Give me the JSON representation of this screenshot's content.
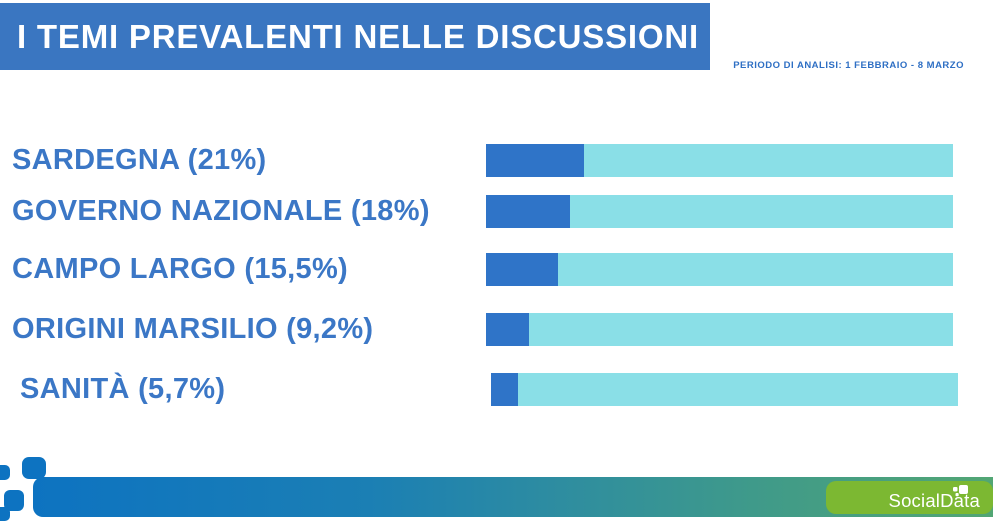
{
  "header": {
    "title": "I TEMI PREVALENTI NELLE DISCUSSIONI"
  },
  "period_note": "PERIODO DI ANALISI: 1 FEBBRAIO - 8 MARZO",
  "footer": {
    "brand": "SocialData"
  },
  "colors": {
    "header_bg": "#3a76c1",
    "label_text": "#3b77c6",
    "bar_fill": "#2f74c8",
    "bar_track": "#8adfe7",
    "footer_gradient_start": "#0d73c1",
    "footer_gradient_end": "#52a674",
    "brand_badge_bg": "#7cb832"
  },
  "chart_data": {
    "type": "bar",
    "orientation": "horizontal",
    "title": "I TEMI PREVALENTI NELLE DISCUSSIONI",
    "categories": [
      "SARDEGNA",
      "GOVERNO NAZIONALE",
      "CAMPO LARGO",
      "ORIGINI MARSILIO",
      "SANITÀ"
    ],
    "values": [
      21,
      18,
      15.5,
      9.2,
      5.7
    ],
    "labels": [
      "SARDEGNA (21%)",
      "GOVERNO NAZIONALE (18%)",
      "CAMPO LARGO (15,5%)",
      "ORIGINI MARSILIO (9,2%)",
      "SANITÀ (5,7%)"
    ],
    "value_display": [
      "21%",
      "18%",
      "15,5%",
      "9,2%",
      "5,7%"
    ],
    "xlim": [
      0,
      100
    ],
    "grid": false,
    "legend": "none",
    "bar_fill_color": "#2f74c8",
    "bar_track_color": "#8adfe7"
  }
}
